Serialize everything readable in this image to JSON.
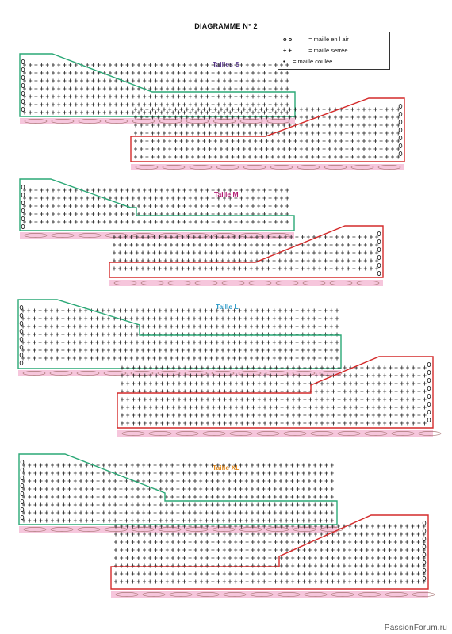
{
  "title": "DIAGRAMME N° 2",
  "legend": {
    "chain": {
      "symbol": "o o",
      "label": "= maille en l air"
    },
    "single": {
      "symbol": "+ +",
      "label": "= maille serrée"
    },
    "slip": {
      "symbol": "•",
      "label": "= maille coulée"
    }
  },
  "sizes": [
    {
      "name": "Tailles S",
      "color": "#5a3a8c"
    },
    {
      "name": "Taille M",
      "color": "#b0176e"
    },
    {
      "name": "Taille L",
      "color": "#2a9ac8"
    },
    {
      "name": "Taille XL",
      "color": "#e38a1e"
    }
  ],
  "colors": {
    "green_outline": "#2aa876",
    "red_outline": "#d42a2a",
    "pink_band": "#f6c6dc",
    "stitch": "#222222"
  },
  "watermark": "PassionForum.ru"
}
